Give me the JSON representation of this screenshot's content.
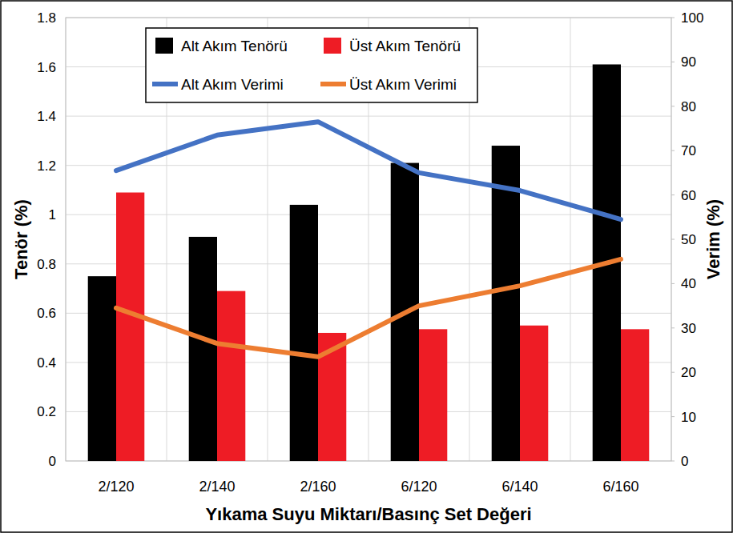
{
  "chart_data": {
    "type": "bar",
    "x_label": "Yıkama Suyu Miktarı/Basınç Set Değeri",
    "y_label": "Tenör (%)",
    "y2_label": "Verim (%)",
    "categories": [
      "2/120",
      "2/140",
      "2/160",
      "6/120",
      "6/140",
      "6/160"
    ],
    "series": [
      {
        "name": "Alt Akım Tenörü",
        "type": "bar",
        "color": "#000000",
        "values": [
          0.75,
          0.91,
          1.04,
          1.21,
          1.28,
          1.61
        ]
      },
      {
        "name": "Üst Akım Tenörü",
        "type": "bar",
        "color": "#ee1c25",
        "values": [
          1.09,
          0.69,
          0.52,
          0.535,
          0.55,
          0.535
        ]
      },
      {
        "name": "Alt Akım Verimi",
        "type": "line",
        "axis": "y2",
        "color": "#4472c4",
        "values": [
          65.5,
          73.5,
          76.5,
          65,
          61,
          54.5
        ]
      },
      {
        "name": "Üst Akım Verimi",
        "type": "line",
        "axis": "y2",
        "color": "#ed7d31",
        "values": [
          34.5,
          26.5,
          23.5,
          35,
          39.5,
          45.5
        ]
      }
    ],
    "ylim": [
      0,
      1.8
    ],
    "yticks": [
      0,
      0.2,
      0.4,
      0.6,
      0.8,
      1,
      1.2,
      1.4,
      1.6,
      1.8
    ],
    "y2lim": [
      0,
      100
    ],
    "y2ticks": [
      0,
      10,
      20,
      30,
      40,
      50,
      60,
      70,
      80,
      90,
      100
    ],
    "grid": true,
    "legend": "top-left"
  }
}
